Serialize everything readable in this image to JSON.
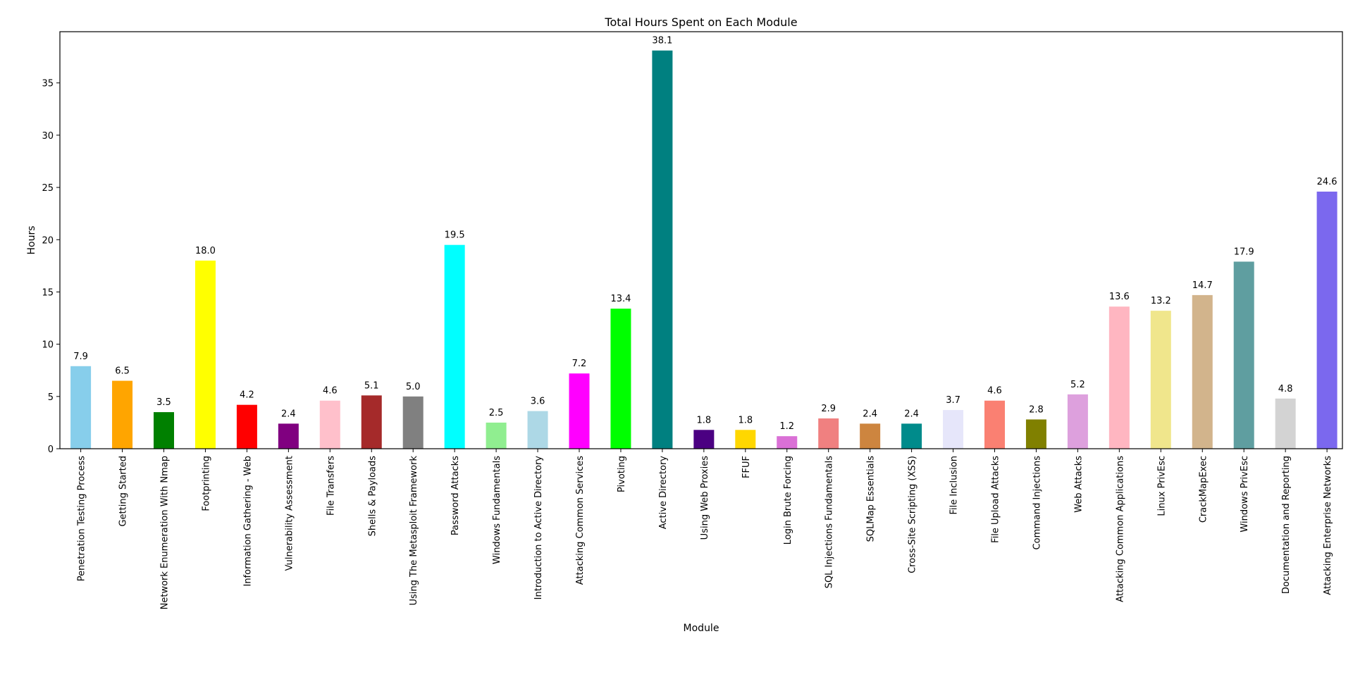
{
  "chart_data": {
    "type": "bar",
    "title": "Total Hours Spent on Each Module",
    "xlabel": "Module",
    "ylabel": "Hours",
    "ylim": [
      0,
      40
    ],
    "yticks": [
      0,
      5,
      10,
      15,
      20,
      25,
      30,
      35
    ],
    "grid": false,
    "legend": "none",
    "categories": [
      "Penetration Testing Process",
      "Getting Started",
      "Network Enumeration With Nmap",
      "Footprinting",
      "Information Gathering - Web",
      "Vulnerability Assessment",
      "File Transfers",
      "Shells & Payloads",
      "Using The Metasploit Framework",
      "Password Attacks",
      "Windows Fundamentals",
      "Introduction to Active Directory",
      "Attacking Common Services",
      "Pivoting",
      "Active Directory",
      "Using Web Proxies",
      "FFUF",
      "Login Brute Forcing",
      "SQL Injections Fundamentals",
      "SQLMap Essentials",
      "Cross-Site Scripting (XSS)",
      "File Inclusion",
      "File Upload Attacks",
      "Command Injections",
      "Web Attacks",
      "Attacking Common Applications",
      "Linux PrivEsc",
      "CrackMapExec",
      "Windows PrivEsc",
      "Documentation and Reporting",
      "Attacking Enterprise Networks"
    ],
    "values": [
      7.9,
      6.5,
      3.5,
      18.0,
      4.2,
      2.4,
      4.6,
      5.1,
      5.0,
      19.5,
      2.5,
      3.6,
      7.2,
      13.4,
      38.1,
      1.8,
      1.8,
      1.2,
      2.9,
      2.4,
      2.4,
      3.7,
      4.6,
      2.8,
      5.2,
      13.6,
      13.2,
      14.7,
      17.9,
      4.8,
      24.6
    ],
    "value_labels": [
      "7.9",
      "6.5",
      "3.5",
      "18.0",
      "4.2",
      "2.4",
      "4.6",
      "5.1",
      "5.0",
      "19.5",
      "2.5",
      "3.6",
      "7.2",
      "13.4",
      "38.1",
      "1.8",
      "1.8",
      "1.2",
      "2.9",
      "2.4",
      "2.4",
      "3.7",
      "4.6",
      "2.8",
      "5.2",
      "13.6",
      "13.2",
      "14.7",
      "17.9",
      "4.8",
      "24.6"
    ],
    "colors": [
      "#87ceeb",
      "#ffa500",
      "#008000",
      "#ffff00",
      "#ff0000",
      "#800080",
      "#ffc0cb",
      "#a52a2a",
      "#808080",
      "#00ffff",
      "#90ee90",
      "#add8e6",
      "#ff00ff",
      "#00ff00",
      "#008080",
      "#4b0082",
      "#ffd700",
      "#da70d6",
      "#f08080",
      "#cd853f",
      "#008b8b",
      "#e6e6fa",
      "#fa8072",
      "#808000",
      "#dda0dd",
      "#ffb6c1",
      "#f0e68c",
      "#d2b48c",
      "#5f9ea0",
      "#d3d3d3",
      "#7b68ee"
    ]
  }
}
